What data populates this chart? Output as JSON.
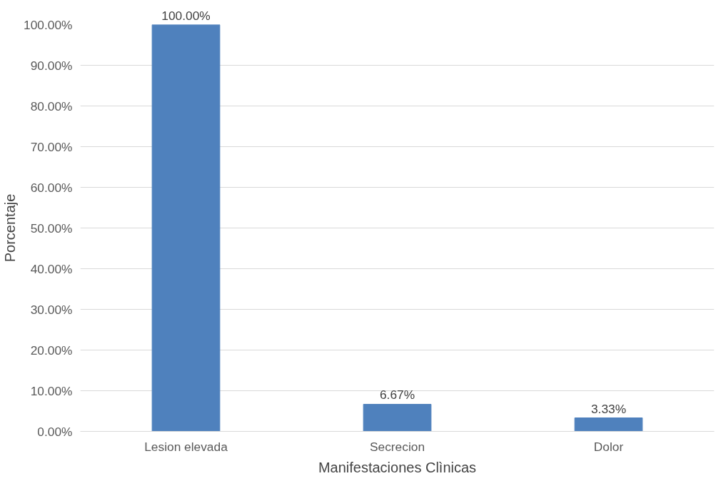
{
  "chart_data": {
    "type": "bar",
    "xlabel": "Manifestaciones Clìnicas",
    "ylabel": "Porcentaje",
    "categories": [
      "Lesion elevada",
      "Secrecion",
      "Dolor"
    ],
    "values": [
      100,
      6.67,
      3.33
    ],
    "value_labels": [
      "100.00%",
      "6.67%",
      "3.33%"
    ],
    "color": "#4f81bd",
    "ylim": [
      0,
      100
    ],
    "yticks": [
      {
        "value": 0,
        "label": "0.00%"
      },
      {
        "value": 10,
        "label": "10.00%"
      },
      {
        "value": 20,
        "label": "20.00%"
      },
      {
        "value": 30,
        "label": "30.00%"
      },
      {
        "value": 40,
        "label": "40.00%"
      },
      {
        "value": 50,
        "label": "50.00%"
      },
      {
        "value": 60,
        "label": "60.00%"
      },
      {
        "value": 70,
        "label": "70.00%"
      },
      {
        "value": 80,
        "label": "80.00%"
      },
      {
        "value": 90,
        "label": "90.00%"
      },
      {
        "value": 100,
        "label": "100.00%"
      }
    ],
    "grid": "y"
  }
}
